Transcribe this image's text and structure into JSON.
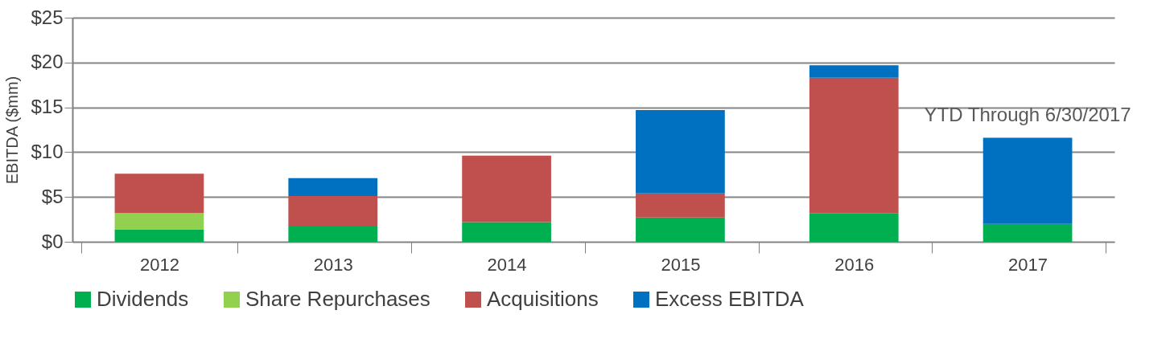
{
  "chart_data": {
    "type": "bar",
    "stacked": true,
    "ylabel": "EBITDA ($mm)",
    "categories": [
      "2012",
      "2013",
      "2014",
      "2015",
      "2016",
      "2017"
    ],
    "series": [
      {
        "name": "Dividends",
        "color": "#00b050",
        "values": [
          1.4,
          1.8,
          2.2,
          2.7,
          3.2,
          2.0
        ]
      },
      {
        "name": "Share Repurchases",
        "color": "#92d050",
        "values": [
          1.8,
          null,
          null,
          null,
          null,
          null
        ]
      },
      {
        "name": "Acquisitions",
        "color": "#c0504d",
        "values": [
          4.4,
          3.3,
          7.4,
          2.7,
          15.1,
          null
        ]
      },
      {
        "name": "Excess EBITDA",
        "color": "#0070c0",
        "values": [
          null,
          2.0,
          null,
          9.3,
          1.4,
          9.6
        ]
      }
    ],
    "ylim": [
      0,
      25
    ],
    "yticks": [
      {
        "value": 0,
        "label": "$0"
      },
      {
        "value": 5,
        "label": "$5"
      },
      {
        "value": 10,
        "label": "$10"
      },
      {
        "value": 15,
        "label": "$15"
      },
      {
        "value": 20,
        "label": "$20"
      },
      {
        "value": 25,
        "label": "$25"
      }
    ],
    "grid": "y",
    "legend": "bottom",
    "annotations": [
      {
        "text": "YTD Through 6/30/2017",
        "x": "2017",
        "y": 11.6
      }
    ]
  }
}
